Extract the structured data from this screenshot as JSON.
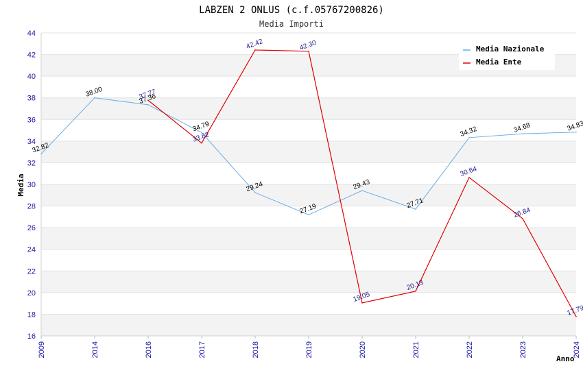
{
  "chart_data": {
    "type": "line",
    "title": "LABZEN 2 ONLUS (c.f.05767200826)",
    "subtitle": "Media Importi",
    "ylabel": "Media",
    "xlabel": "Anno",
    "ylim": [
      16,
      44
    ],
    "yticks": [
      "16",
      "18",
      "20",
      "22",
      "24",
      "26",
      "28",
      "30",
      "32",
      "34",
      "36",
      "38",
      "40",
      "42",
      "44"
    ],
    "categories": [
      "2009",
      "2014",
      "2016",
      "2017",
      "2018",
      "2019",
      "2020",
      "2021",
      "2022",
      "2023",
      "2024"
    ],
    "grid": true,
    "legend_position": "top-right",
    "series": [
      {
        "name": "Media Nazionale",
        "color": "#6aaee8",
        "values": [
          32.82,
          38.0,
          37.36,
          34.79,
          29.24,
          27.19,
          29.43,
          27.71,
          34.32,
          34.68,
          34.83
        ],
        "labels": [
          "32.82",
          "38.00",
          "37.36",
          "34.79",
          "29.24",
          "27.19",
          "29.43",
          "27.71",
          "34.32",
          "34.68",
          "34.83"
        ]
      },
      {
        "name": "Media Ente",
        "color": "#e00000",
        "values": [
          null,
          null,
          37.77,
          33.82,
          42.42,
          42.3,
          19.05,
          20.13,
          30.64,
          26.84,
          17.79
        ],
        "labels": [
          "",
          "",
          "37.77",
          "33.82",
          "42.42",
          "42.30",
          "19.05",
          "20.13",
          "30.64",
          "26.84",
          "17.79"
        ]
      }
    ]
  }
}
